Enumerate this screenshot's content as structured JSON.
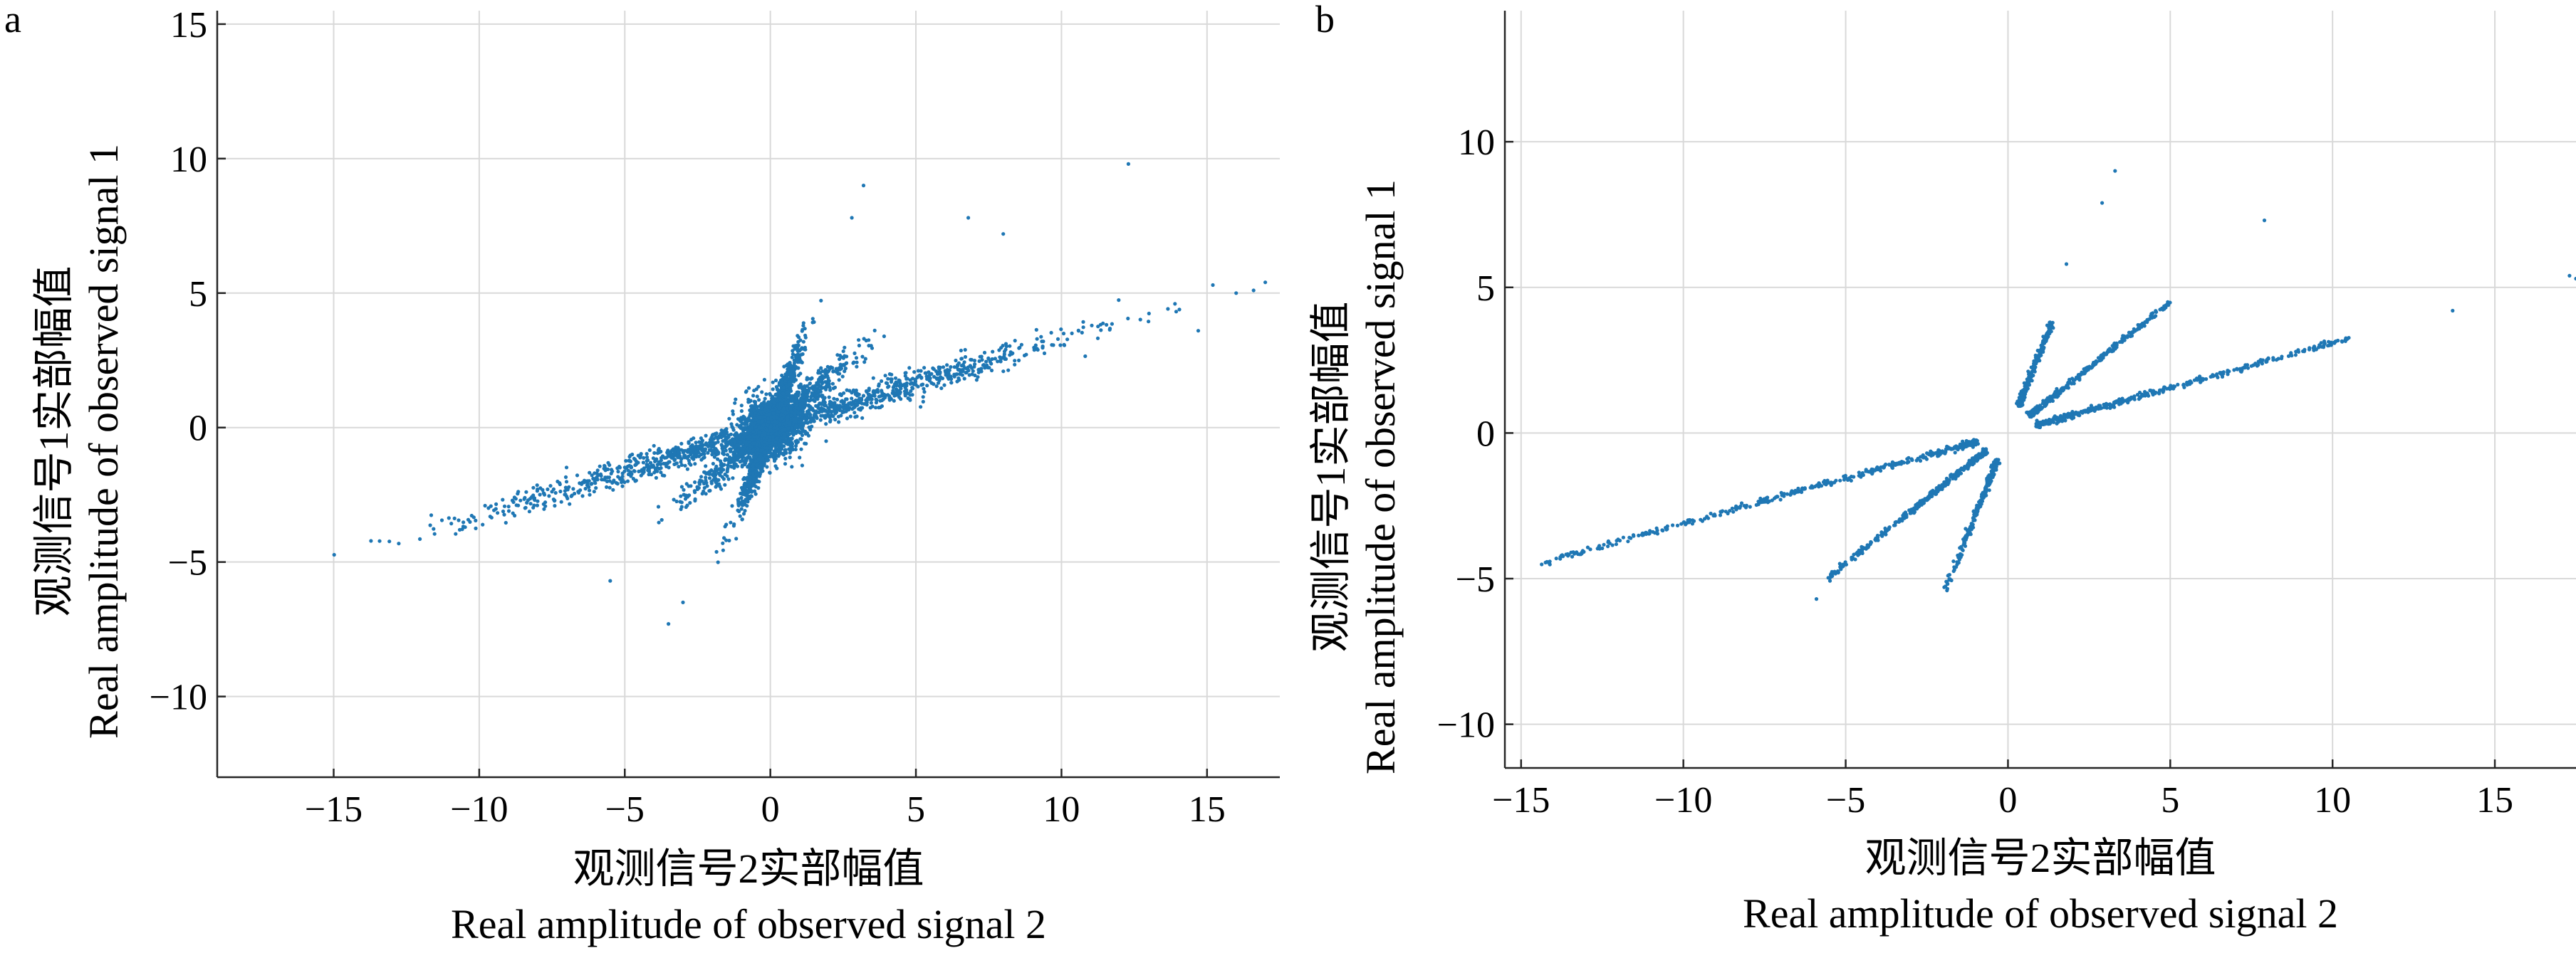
{
  "figure": {
    "panels": [
      "a",
      "b"
    ]
  },
  "colors": {
    "points": "#1f77b4",
    "grid": "#d9d9d9",
    "axis": "#262626"
  },
  "chart_data": [
    {
      "type": "scatter",
      "panel_label": "a",
      "xlabel": [
        "观测信号2实部幅值",
        "Real amplitude of observed signal 2"
      ],
      "ylabel": [
        "观测信号1实部幅值",
        "Real amplitude of observed signal 1"
      ],
      "xlim": [
        -19,
        17.5
      ],
      "ylim": [
        -13,
        15.5
      ],
      "xticks": [
        -15,
        -10,
        -5,
        0,
        5,
        10,
        15
      ],
      "yticks": [
        -10,
        -5,
        0,
        5,
        10,
        15
      ],
      "xtick_labels": [
        "−15",
        "−10",
        "−5",
        "0",
        "5",
        "10",
        "15"
      ],
      "ytick_labels": [
        "−10",
        "−5",
        "0",
        "5",
        "10",
        "15"
      ],
      "grid": true,
      "point_color": "#1f77b4",
      "clusters": [
        {
          "name": "line-slope-0.33",
          "slope": 0.33,
          "x_range": [
            -15.5,
            17.5
          ],
          "count": 1400,
          "noise": 0.25
        },
        {
          "name": "line-slope-2.9",
          "slope": 2.9,
          "x_range": [
            -1.8,
            1.6
          ],
          "count": 1200,
          "noise": 0.25
        },
        {
          "name": "line-slope-0.9",
          "slope": 0.9,
          "x_range": [
            -4.5,
            4.5
          ],
          "count": 900,
          "noise": 0.3
        },
        {
          "name": "center-blob",
          "slope": 0.3,
          "x_range": [
            -1.5,
            1.5
          ],
          "count": 1500,
          "noise": 0.55
        }
      ],
      "outliers": [
        [
          12.3,
          9.8
        ],
        [
          3.2,
          9.0
        ],
        [
          6.8,
          7.8
        ],
        [
          8.0,
          7.2
        ],
        [
          2.8,
          7.8
        ],
        [
          -3.5,
          -7.3
        ],
        [
          -3.0,
          -6.5
        ],
        [
          -5.5,
          -5.7
        ],
        [
          15.2,
          5.3
        ],
        [
          17.0,
          5.4
        ],
        [
          16.6,
          5.1
        ],
        [
          14.7,
          3.6
        ],
        [
          13.9,
          4.6
        ],
        [
          16.0,
          5.0
        ]
      ]
    },
    {
      "type": "scatter",
      "panel_label": "b",
      "xlabel": [
        "观测信号2实部幅值",
        "Real amplitude of observed signal 2"
      ],
      "ylabel": [
        "观测信号1实部幅值",
        "Real amplitude of observed signal 1"
      ],
      "xlim": [
        -15.5,
        17.5
      ],
      "ylim": [
        -11.5,
        14.5
      ],
      "xticks": [
        -15,
        -10,
        -5,
        0,
        5,
        10,
        15
      ],
      "yticks": [
        -10,
        -5,
        0,
        5,
        10
      ],
      "xtick_labels": [
        "−15",
        "−10",
        "−5",
        "0",
        "5",
        "10",
        "15"
      ],
      "ytick_labels": [
        "−10",
        "−5",
        "0",
        "5",
        "10"
      ],
      "grid": true,
      "point_color": "#1f77b4",
      "clusters": [
        {
          "name": "ray-pos-shallow",
          "slope": 0.31,
          "x_from": 0.9,
          "x_to": 10.5,
          "sign": 1,
          "count": 420
        },
        {
          "name": "ray-pos-mid",
          "slope": 0.9,
          "x_from": 0.7,
          "x_to": 5.0,
          "sign": 1,
          "count": 360
        },
        {
          "name": "ray-pos-steep",
          "slope": 2.8,
          "x_from": 0.35,
          "x_to": 1.4,
          "sign": 1,
          "count": 260
        },
        {
          "name": "ray-neg-shallow",
          "slope": 0.31,
          "x_from": -1.0,
          "x_to": -14.5,
          "sign": -1,
          "count": 420
        },
        {
          "name": "ray-neg-mid",
          "slope": 0.9,
          "x_from": -0.7,
          "x_to": -5.5,
          "sign": -1,
          "count": 360
        },
        {
          "name": "ray-neg-steep",
          "slope": 2.8,
          "x_from": -0.35,
          "x_to": -1.9,
          "sign": -1,
          "count": 260
        }
      ],
      "outliers": [
        [
          3.3,
          9.0
        ],
        [
          2.9,
          7.9
        ],
        [
          7.9,
          7.3
        ],
        [
          1.8,
          5.8
        ],
        [
          13.7,
          4.2
        ],
        [
          17.3,
          5.4
        ],
        [
          17.5,
          5.3
        ],
        [
          -5.9,
          -5.7
        ],
        [
          -1.9,
          -5.1
        ]
      ]
    }
  ]
}
